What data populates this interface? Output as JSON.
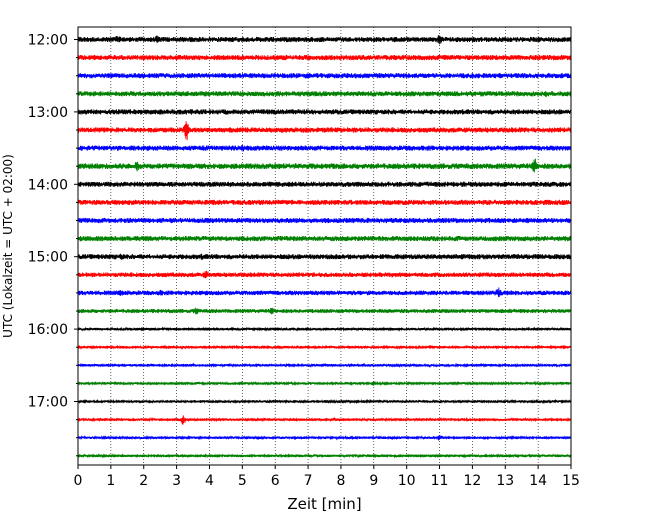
{
  "chart_data": {
    "type": "line",
    "title": "",
    "xlabel": "Zeit  [min]",
    "ylabel": "UTC (Lokalzeit = UTC + 02:00)",
    "xlim": [
      0,
      15
    ],
    "x_ticks": [
      0,
      1,
      2,
      3,
      4,
      5,
      6,
      7,
      8,
      9,
      10,
      11,
      12,
      13,
      14,
      15
    ],
    "grid": "vertical dotted at each minute",
    "y_tick_labels": [
      "12:00",
      "13:00",
      "14:00",
      "15:00",
      "16:00",
      "17:00"
    ],
    "trace_colors": [
      "#000000",
      "#ff0000",
      "#0000ff",
      "#008000"
    ],
    "series": [
      {
        "start": "12:00",
        "color": "#000000",
        "amplitude": 1.0,
        "events": [
          [
            1.2,
            1.6
          ],
          [
            2.4,
            1.5
          ],
          [
            11.0,
            2.0
          ]
        ]
      },
      {
        "start": "12:15",
        "color": "#ff0000",
        "amplitude": 1.0,
        "events": [
          [
            6.3,
            1.4
          ]
        ]
      },
      {
        "start": "12:30",
        "color": "#0000ff",
        "amplitude": 1.0,
        "events": []
      },
      {
        "start": "12:45",
        "color": "#008000",
        "amplitude": 1.0,
        "events": [
          [
            14.2,
            1.3
          ]
        ]
      },
      {
        "start": "13:00",
        "color": "#000000",
        "amplitude": 1.0,
        "events": [
          [
            3.4,
            1.4
          ]
        ]
      },
      {
        "start": "13:15",
        "color": "#ff0000",
        "amplitude": 1.0,
        "events": [
          [
            3.3,
            4.5
          ]
        ]
      },
      {
        "start": "13:30",
        "color": "#0000ff",
        "amplitude": 1.0,
        "events": [
          [
            5.0,
            1.6
          ]
        ]
      },
      {
        "start": "13:45",
        "color": "#008000",
        "amplitude": 1.1,
        "events": [
          [
            1.8,
            1.8
          ],
          [
            13.9,
            3.0
          ]
        ]
      },
      {
        "start": "14:00",
        "color": "#000000",
        "amplitude": 1.0,
        "events": []
      },
      {
        "start": "14:15",
        "color": "#ff0000",
        "amplitude": 1.0,
        "events": []
      },
      {
        "start": "14:30",
        "color": "#0000ff",
        "amplitude": 1.0,
        "events": []
      },
      {
        "start": "14:45",
        "color": "#008000",
        "amplitude": 1.0,
        "events": []
      },
      {
        "start": "15:00",
        "color": "#000000",
        "amplitude": 1.0,
        "events": [
          [
            1.3,
            1.4
          ],
          [
            3.8,
            1.3
          ]
        ]
      },
      {
        "start": "15:15",
        "color": "#ff0000",
        "amplitude": 0.9,
        "events": [
          [
            3.9,
            2.0
          ],
          [
            9.6,
            1.3
          ]
        ]
      },
      {
        "start": "15:30",
        "color": "#0000ff",
        "amplitude": 0.9,
        "events": [
          [
            1.3,
            1.5
          ],
          [
            2.5,
            1.4
          ],
          [
            12.8,
            2.4
          ]
        ]
      },
      {
        "start": "15:45",
        "color": "#008000",
        "amplitude": 0.8,
        "events": [
          [
            3.6,
            1.8
          ],
          [
            5.9,
            1.8
          ]
        ]
      },
      {
        "start": "16:00",
        "color": "#000000",
        "amplitude": 0.5,
        "events": []
      },
      {
        "start": "16:15",
        "color": "#ff0000",
        "amplitude": 0.5,
        "events": [
          [
            10.7,
            1.6
          ]
        ]
      },
      {
        "start": "16:30",
        "color": "#0000ff",
        "amplitude": 0.5,
        "events": []
      },
      {
        "start": "16:45",
        "color": "#008000",
        "amplitude": 0.5,
        "events": [
          [
            9.0,
            2.0
          ]
        ]
      },
      {
        "start": "17:00",
        "color": "#000000",
        "amplitude": 0.5,
        "events": []
      },
      {
        "start": "17:15",
        "color": "#ff0000",
        "amplitude": 0.5,
        "events": [
          [
            3.2,
            4.5
          ]
        ]
      },
      {
        "start": "17:30",
        "color": "#0000ff",
        "amplitude": 0.5,
        "events": [
          [
            11.0,
            2.5
          ]
        ]
      },
      {
        "start": "17:45",
        "color": "#008000",
        "amplitude": 0.5,
        "events": []
      }
    ]
  }
}
